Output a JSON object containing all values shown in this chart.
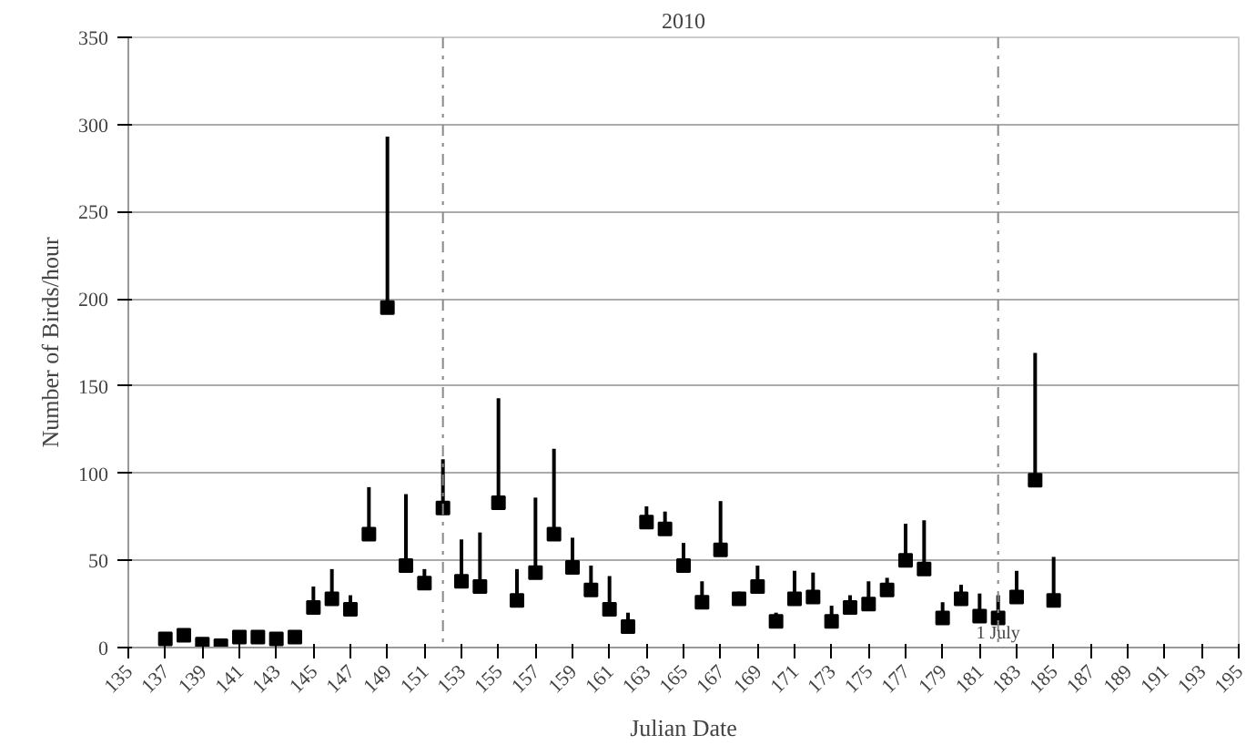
{
  "chart_data": {
    "type": "scatter",
    "title": "2010",
    "xlabel": "Julian Date",
    "ylabel": "Number of Birds/hour",
    "x": [
      137,
      138,
      139,
      140,
      141,
      142,
      143,
      144,
      145,
      146,
      147,
      148,
      149,
      150,
      151,
      152,
      153,
      154,
      155,
      156,
      157,
      158,
      159,
      160,
      161,
      162,
      163,
      164,
      165,
      166,
      167,
      168,
      169,
      170,
      171,
      172,
      173,
      174,
      175,
      176,
      177,
      178,
      179,
      180,
      181,
      182,
      183,
      184,
      185
    ],
    "values": [
      5,
      7,
      2,
      1,
      6,
      6,
      5,
      6,
      23,
      28,
      22,
      65,
      195,
      47,
      37,
      80,
      38,
      35,
      83,
      27,
      43,
      65,
      46,
      33,
      22,
      12,
      72,
      68,
      47,
      26,
      56,
      28,
      35,
      15,
      28,
      29,
      15,
      23,
      25,
      33,
      50,
      45,
      17,
      28,
      18,
      17,
      29,
      96,
      27
    ],
    "errors": [
      null,
      null,
      null,
      null,
      null,
      null,
      null,
      null,
      [
        23,
        35
      ],
      [
        28,
        45
      ],
      [
        22,
        30
      ],
      [
        65,
        92
      ],
      [
        195,
        293
      ],
      [
        47,
        88
      ],
      [
        37,
        45
      ],
      [
        80,
        108
      ],
      [
        38,
        62
      ],
      [
        35,
        66
      ],
      [
        83,
        143
      ],
      [
        27,
        45
      ],
      [
        43,
        86
      ],
      [
        65,
        114
      ],
      [
        46,
        63
      ],
      [
        33,
        47
      ],
      [
        22,
        41
      ],
      [
        12,
        20
      ],
      [
        72,
        81
      ],
      [
        68,
        78
      ],
      [
        47,
        60
      ],
      [
        26,
        38
      ],
      [
        56,
        84
      ],
      [
        28,
        32
      ],
      [
        35,
        47
      ],
      [
        15,
        20
      ],
      [
        28,
        44
      ],
      [
        29,
        43
      ],
      [
        15,
        24
      ],
      [
        23,
        30
      ],
      [
        25,
        38
      ],
      [
        33,
        40
      ],
      [
        50,
        71
      ],
      [
        45,
        73
      ],
      [
        17,
        26
      ],
      [
        28,
        36
      ],
      [
        18,
        31
      ],
      [
        17,
        30
      ],
      [
        29,
        44
      ],
      [
        96,
        169
      ],
      [
        27,
        52
      ]
    ],
    "color": "#000000",
    "marker": "square",
    "xlim": [
      135,
      195
    ],
    "xticks": [
      135,
      137,
      139,
      141,
      143,
      145,
      147,
      149,
      151,
      153,
      155,
      157,
      159,
      161,
      163,
      165,
      167,
      169,
      171,
      173,
      175,
      177,
      179,
      181,
      183,
      185,
      187,
      189,
      191,
      193,
      195
    ],
    "ylim": [
      0,
      350
    ],
    "yticks": [
      0,
      50,
      100,
      150,
      200,
      250,
      300,
      350
    ],
    "grid": "y",
    "ref_lines": [
      {
        "axis": "x",
        "value": 152,
        "label": null,
        "line_style": "dashdot",
        "color": "#888888"
      },
      {
        "axis": "x",
        "value": 182,
        "label": "1 July",
        "line_style": "dashdot",
        "color": "#888888"
      }
    ]
  }
}
